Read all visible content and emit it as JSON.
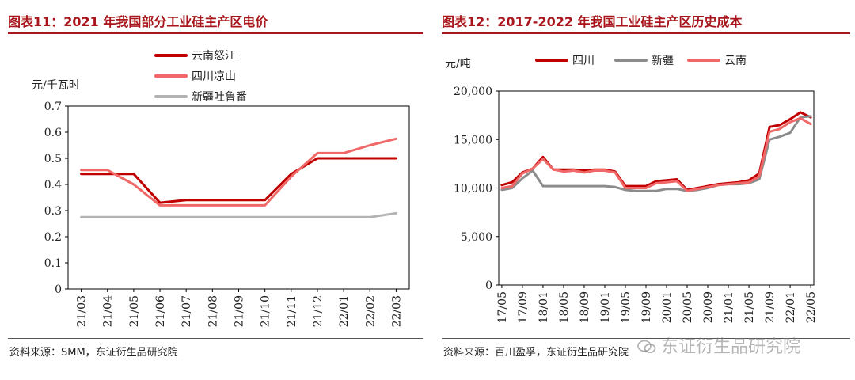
{
  "left": {
    "title": "图表11：2021 年我国部分工业硅主产区电价",
    "source": "资料来源：SMM，东证衍生品研究院",
    "chart_data": {
      "type": "line",
      "ylabel": "元/千瓦时",
      "ylim": [
        0,
        0.7
      ],
      "yticks": [
        "0",
        "0.1",
        "0.2",
        "0.3",
        "0.4",
        "0.5",
        "0.6",
        "0.7"
      ],
      "categories": [
        "21/03",
        "21/04",
        "21/05",
        "21/06",
        "21/07",
        "21/08",
        "21/09",
        "21/10",
        "21/11",
        "21/12",
        "22/01",
        "22/02",
        "22/03"
      ],
      "legend_position": "top-left",
      "series": [
        {
          "name": "云南怒江",
          "color": "#c00000",
          "values": [
            0.44,
            0.44,
            0.44,
            0.33,
            0.34,
            0.34,
            0.34,
            0.34,
            0.44,
            0.5,
            0.5,
            0.5,
            0.5
          ]
        },
        {
          "name": "四川凉山",
          "color": "#f06868",
          "values": [
            0.455,
            0.455,
            0.4,
            0.32,
            0.32,
            0.32,
            0.32,
            0.32,
            0.43,
            0.52,
            0.52,
            0.55,
            0.575
          ]
        },
        {
          "name": "新疆吐鲁番",
          "color": "#b3b3b3",
          "values": [
            0.275,
            0.275,
            0.275,
            0.275,
            0.275,
            0.275,
            0.275,
            0.275,
            0.275,
            0.275,
            0.275,
            0.275,
            0.29
          ]
        }
      ]
    }
  },
  "right": {
    "title": "图表12：2017-2022 年我国工业硅主产区历史成本",
    "source": "资料来源：百川盈孚，东证衍生品研究院",
    "chart_data": {
      "type": "line",
      "ylabel": "元/吨",
      "ylim": [
        0,
        20000
      ],
      "yticks": [
        "0",
        "5,000",
        "10,000",
        "15,000",
        "20,000"
      ],
      "categories": [
        "17/05",
        "17/07",
        "17/09",
        "17/11",
        "18/01",
        "18/03",
        "18/05",
        "18/07",
        "18/09",
        "18/11",
        "19/01",
        "19/03",
        "19/05",
        "19/07",
        "19/09",
        "19/11",
        "20/01",
        "20/03",
        "20/05",
        "20/07",
        "20/09",
        "20/11",
        "21/01",
        "21/03",
        "21/05",
        "21/07",
        "21/09",
        "21/11",
        "22/01",
        "22/03",
        "22/05"
      ],
      "tick_labels": [
        "17/05",
        "17/09",
        "18/01",
        "18/05",
        "18/09",
        "19/01",
        "19/05",
        "19/09",
        "20/01",
        "20/05",
        "20/09",
        "21/01",
        "21/05",
        "21/09",
        "22/01",
        "22/05"
      ],
      "legend_position": "top",
      "series": [
        {
          "name": "四川",
          "color": "#c00000",
          "values": [
            10300,
            10600,
            11600,
            12000,
            13200,
            11900,
            11900,
            11900,
            11800,
            11900,
            11900,
            11700,
            10200,
            10200,
            10200,
            10700,
            10800,
            10900,
            9800,
            10000,
            10200,
            10400,
            10500,
            10600,
            10800,
            11500,
            16300,
            16500,
            17100,
            17800,
            17300
          ]
        },
        {
          "name": "新疆",
          "color": "#8c8c8c",
          "values": [
            9800,
            10000,
            11000,
            11800,
            10200,
            10200,
            10200,
            10200,
            10200,
            10200,
            10200,
            10100,
            9800,
            9700,
            9700,
            9700,
            9900,
            9900,
            9700,
            9800,
            10000,
            10300,
            10400,
            10400,
            10500,
            10900,
            15000,
            15300,
            15700,
            17300,
            17400
          ]
        },
        {
          "name": "云南",
          "color": "#f06868",
          "values": [
            10000,
            10200,
            11500,
            12000,
            13000,
            11900,
            11700,
            11800,
            11600,
            11800,
            11800,
            11600,
            10000,
            10000,
            10000,
            10500,
            10600,
            10700,
            9700,
            9900,
            10100,
            10300,
            10400,
            10500,
            10600,
            11200,
            15800,
            16100,
            16800,
            17200,
            16600
          ]
        }
      ]
    }
  },
  "watermark": "东证衍生品研究院"
}
